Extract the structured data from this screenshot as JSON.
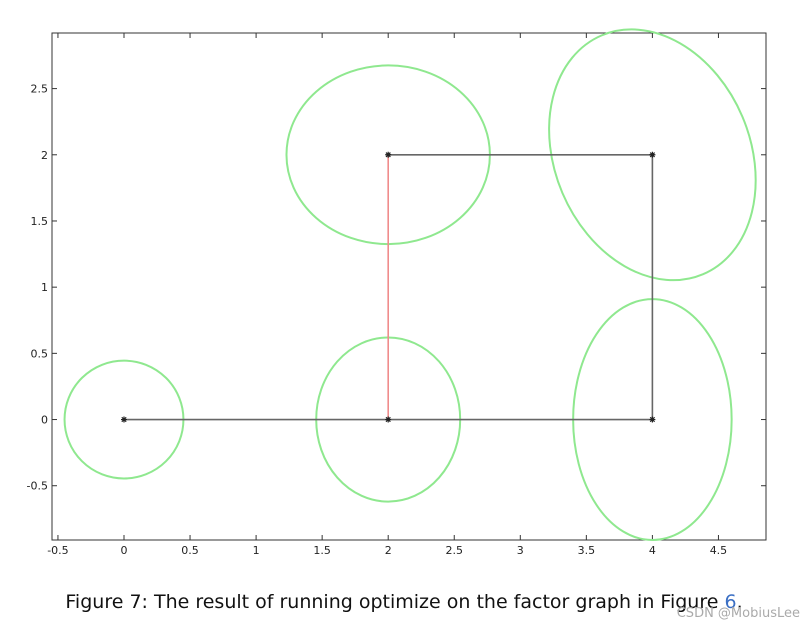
{
  "chart_data": {
    "type": "factor_graph",
    "xlim": [
      -0.545,
      4.86
    ],
    "ylim": [
      -0.91,
      2.92
    ],
    "xticks": [
      -0.5,
      0,
      0.5,
      1,
      1.5,
      2,
      2.5,
      3,
      3.5,
      4,
      4.5
    ],
    "yticks": [
      -0.5,
      0,
      0.5,
      1,
      1.5,
      2,
      2.5
    ],
    "lines": [
      {
        "color": "#666666",
        "x": [
          0,
          2,
          4,
          4,
          2
        ],
        "y": [
          0,
          0,
          0,
          2,
          2
        ]
      },
      {
        "color": "#f08c8c",
        "x": [
          2,
          2
        ],
        "y": [
          2,
          0
        ]
      }
    ],
    "points": {
      "color": "#222222",
      "x": [
        0,
        2,
        4,
        4,
        2
      ],
      "y": [
        0,
        0,
        0,
        2,
        2
      ]
    },
    "ellipse_color": "#8fe88f",
    "ellipses": [
      {
        "cx": 0,
        "cy": 0,
        "rx": 0.45,
        "ry": 0.445,
        "angle": 0
      },
      {
        "cx": 2,
        "cy": 0,
        "rx": 0.545,
        "ry": 0.62,
        "angle": 0
      },
      {
        "cx": 4,
        "cy": 0,
        "rx": 0.6,
        "ry": 0.91,
        "angle": 0
      },
      {
        "cx": 2,
        "cy": 2,
        "rx": 0.77,
        "ry": 0.675,
        "angle": 0
      },
      {
        "cx": 4,
        "cy": 2,
        "rx": 0.74,
        "ry": 0.98,
        "angle": 23
      }
    ]
  },
  "caption": {
    "text": "Figure 7: The result of running optimize on the factor graph in Figure",
    "ref": "6",
    "end": "."
  },
  "watermark": "CSDN @MobiusLee"
}
